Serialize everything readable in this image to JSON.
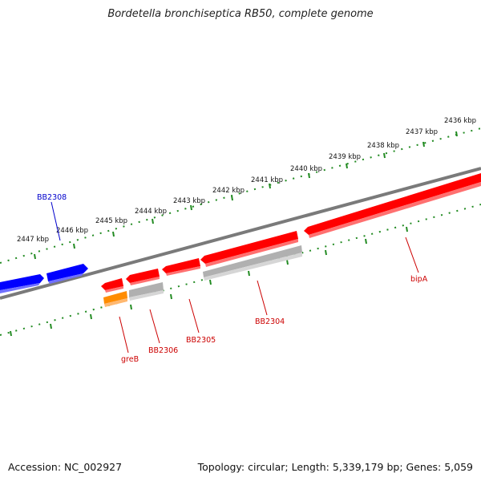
{
  "title": "Bordetella bronchiseptica RB50, complete genome",
  "footer": {
    "accession": "Accession: NC_002927",
    "stats": "Topology: circular; Length: 5,339,179 bp; Genes: 5,059"
  },
  "colors": {
    "backbone": "#7a7a7a",
    "scale": "#228b22",
    "label_red": "#cc0000",
    "label_blue": "#0000cc",
    "gene_red": "#ff0000",
    "gene_blue": "#0000ff",
    "gene_gray": "#b0b0b0",
    "gene_orange": "#ff8c00"
  },
  "outer_scale_labels": [
    "2436 kbp",
    "2437 kbp",
    "2438 kbp",
    "2439 kbp",
    "2440 kbp",
    "2441 kbp",
    "2442 kbp",
    "2443 kbp",
    "2444 kbp",
    "2445 kbp",
    "2446 kbp",
    "2447 kbp"
  ],
  "gene_labels": [
    {
      "name": "BB2308",
      "color": "blue"
    },
    {
      "name": "bipA",
      "color": "red"
    },
    {
      "name": "BB2304",
      "color": "red"
    },
    {
      "name": "BB2305",
      "color": "red"
    },
    {
      "name": "BB2306",
      "color": "red"
    },
    {
      "name": "greB",
      "color": "red"
    }
  ]
}
